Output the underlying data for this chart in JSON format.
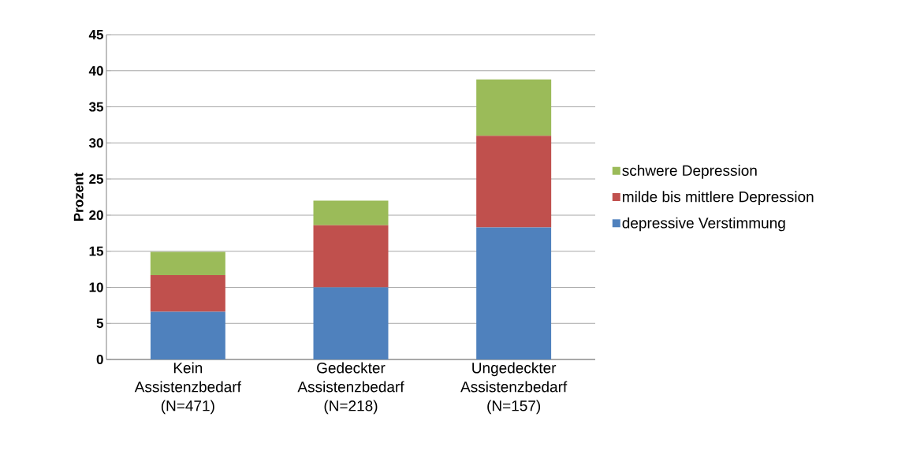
{
  "chart_data": {
    "type": "bar",
    "stacked": true,
    "ylabel": "Prozent",
    "categories": [
      "Kein Assistenzbedarf (N=471)",
      "Gedeckter Assistenzbedarf (N=218)",
      "Ungedeckter Assistenzbedarf (N=157)"
    ],
    "series": [
      {
        "name": "depressive Verstimmung",
        "color": "#4f81bd",
        "values": [
          6.6,
          10.0,
          18.3
        ]
      },
      {
        "name": "milde bis mittlere Depression",
        "color": "#c0504d",
        "values": [
          5.1,
          8.6,
          12.7
        ]
      },
      {
        "name": "schwere Depression",
        "color": "#9bbb59",
        "values": [
          3.2,
          3.4,
          7.8
        ]
      }
    ],
    "ylim": [
      0,
      45
    ],
    "yticks": [
      0,
      5,
      10,
      15,
      20,
      25,
      30,
      35,
      40,
      45
    ],
    "grid": "y",
    "legend": "right"
  }
}
